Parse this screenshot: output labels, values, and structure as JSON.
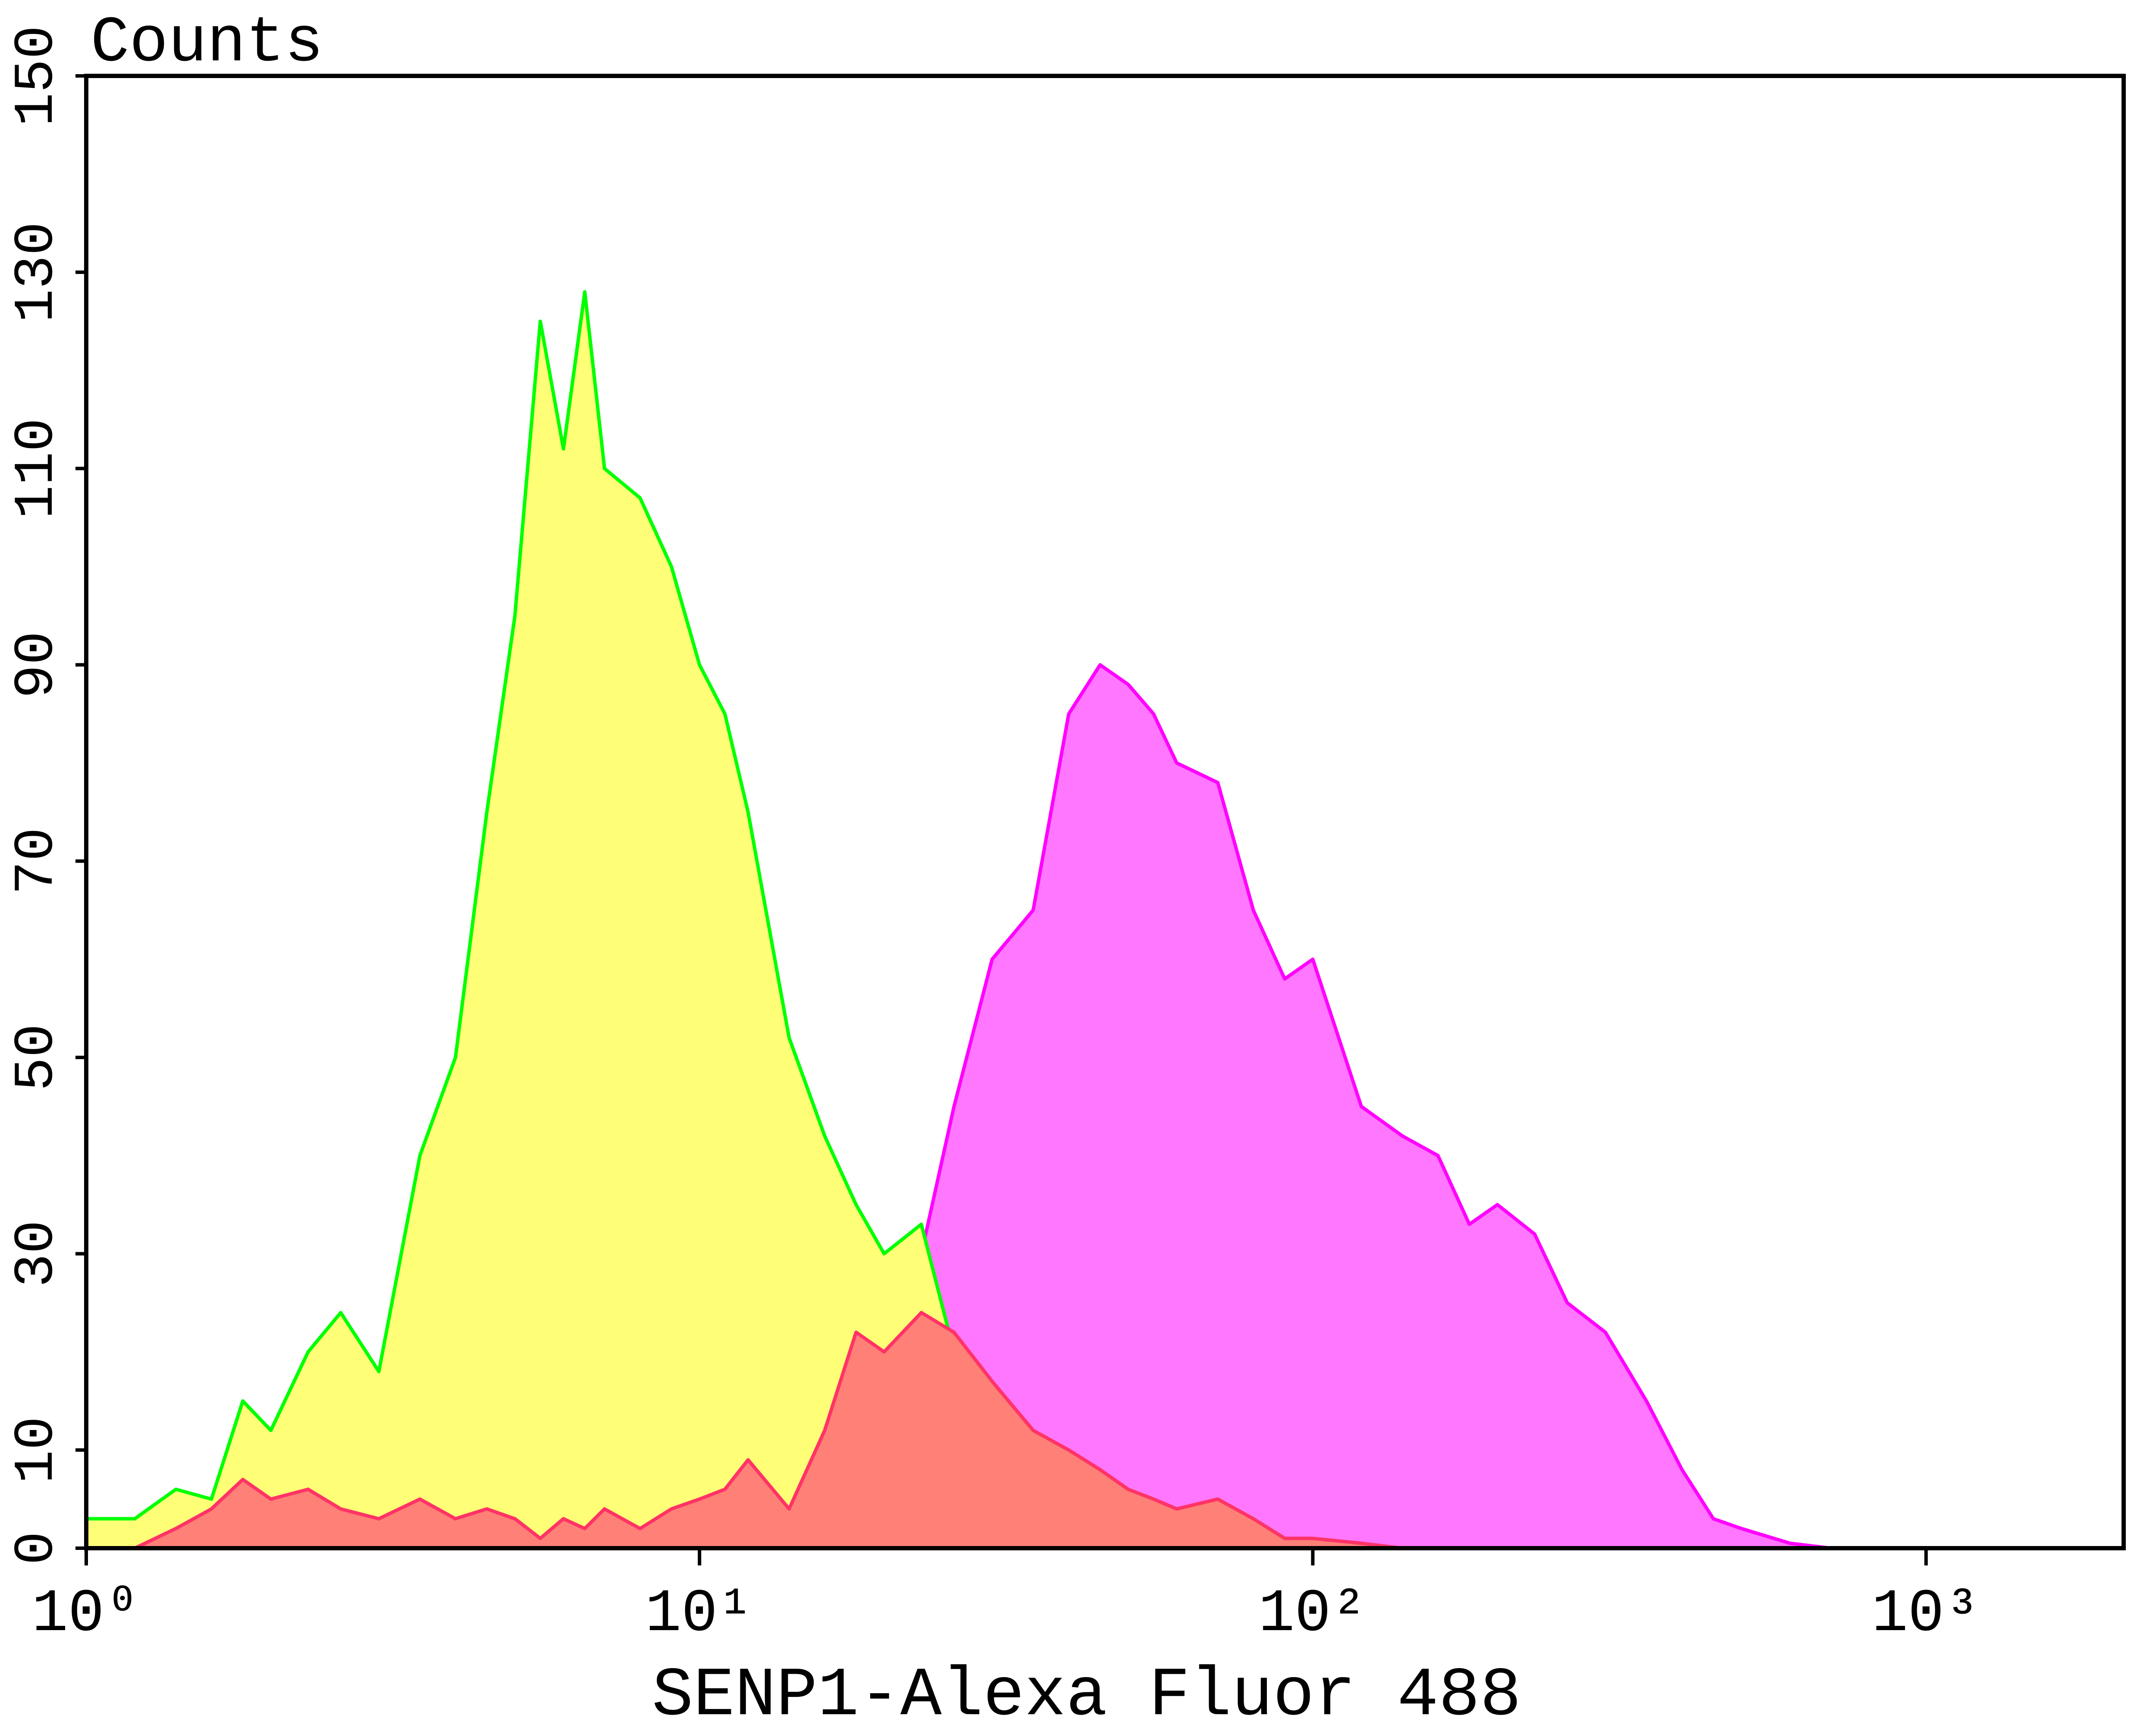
{
  "chart_data": {
    "type": "area",
    "y_label": "Counts",
    "x_label": "SENP1-Alexa Fluor 488",
    "xscale": "log",
    "xlim": [
      1,
      2100
    ],
    "ylim": [
      0,
      150
    ],
    "xticks": [
      {
        "value": 1,
        "label": "10⁰"
      },
      {
        "value": 10,
        "label": "10¹"
      },
      {
        "value": 100,
        "label": "10²"
      },
      {
        "value": 1000,
        "label": "10³"
      }
    ],
    "yticks": [
      0,
      10,
      30,
      50,
      70,
      90,
      110,
      130,
      150
    ],
    "x": [
      1,
      1.2,
      1.4,
      1.6,
      1.8,
      2,
      2.3,
      2.6,
      3,
      3.5,
      4,
      4.5,
      5,
      5.5,
      6,
      6.5,
      7,
      8,
      9,
      10,
      11,
      12,
      14,
      16,
      18,
      20,
      23,
      26,
      30,
      35,
      40,
      45,
      50,
      55,
      60,
      70,
      80,
      90,
      100,
      120,
      140,
      160,
      180,
      200,
      230,
      260,
      300,
      350,
      400,
      450,
      500,
      600,
      700,
      800,
      1000
    ],
    "series": [
      {
        "color": "#ff77ff",
        "line_color": "#ff00ff",
        "values": [
          0,
          0,
          0,
          0,
          0,
          0,
          0,
          0,
          0,
          0,
          0,
          0,
          0,
          0,
          0,
          0,
          0,
          0,
          0,
          0,
          0,
          0,
          0,
          0,
          0,
          10,
          30,
          45,
          60,
          65,
          85,
          90,
          88,
          85,
          80,
          78,
          65,
          58,
          60,
          45,
          42,
          40,
          33,
          35,
          32,
          25,
          22,
          15,
          8,
          3,
          2,
          0.5,
          0,
          0,
          0
        ]
      },
      {
        "color": "#ffff77",
        "line_color": "#00ff00",
        "values": [
          3,
          3,
          6,
          5,
          15,
          12,
          20,
          24,
          18,
          40,
          50,
          75,
          95,
          125,
          112,
          128,
          110,
          107,
          100,
          90,
          85,
          75,
          52,
          42,
          35,
          30,
          33,
          20,
          15,
          12,
          8,
          7,
          6,
          5,
          2,
          5,
          3,
          1,
          0,
          0,
          0,
          0,
          0,
          0,
          0,
          0,
          0,
          0,
          0,
          0,
          0,
          0,
          0,
          0,
          0
        ]
      },
      {
        "color": "#ff8077",
        "line_color": "#ff3366",
        "values": [
          0,
          0,
          2,
          4,
          7,
          5,
          6,
          4,
          3,
          5,
          3,
          4,
          3,
          1,
          3,
          2,
          4,
          2,
          4,
          5,
          6,
          9,
          4,
          12,
          22,
          20,
          24,
          22,
          17,
          12,
          10,
          8,
          6,
          5,
          4,
          5,
          3,
          1,
          1,
          0.5,
          0,
          0,
          0,
          0,
          0,
          0,
          0,
          0,
          0,
          0,
          0,
          0,
          0,
          0,
          0
        ]
      }
    ]
  }
}
